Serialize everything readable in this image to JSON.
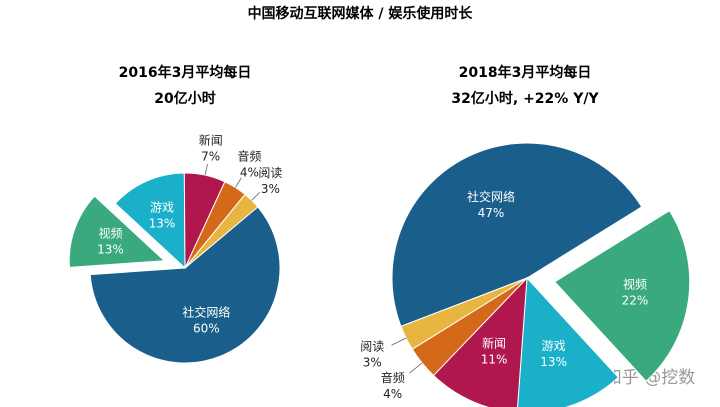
{
  "title": "中国移动互联网媒体 / 娱乐使用时长",
  "watermark": "知乎 @挖数",
  "chart_data": [
    {
      "type": "pie",
      "title": "2016年3月平均每日",
      "subtitle": "20亿小时",
      "categories": [
        "社交网络",
        "视频",
        "游戏",
        "新闻",
        "音频",
        "阅读"
      ],
      "values": [
        60,
        13,
        13,
        7,
        4,
        3
      ],
      "value_labels": [
        "60%",
        "13%",
        "13%",
        "7%",
        "4%",
        "3%"
      ],
      "colors": [
        "#1a5e8c",
        "#3aaa7e",
        "#1ab0c9",
        "#b0174e",
        "#d4691a",
        "#e8b640"
      ],
      "explode": [
        false,
        true,
        false,
        false,
        false,
        false
      ]
    },
    {
      "type": "pie",
      "title": "2018年3月平均每日",
      "subtitle": "32亿小时, +22% Y/Y",
      "categories": [
        "社交网络",
        "视频",
        "游戏",
        "新闻",
        "音频",
        "阅读"
      ],
      "values": [
        47,
        22,
        13,
        11,
        4,
        3
      ],
      "value_labels": [
        "47%",
        "22%",
        "13%",
        "11%",
        "4%",
        "3%"
      ],
      "colors": [
        "#1a5e8c",
        "#3aaa7e",
        "#1ab0c9",
        "#b0174e",
        "#d4691a",
        "#e8b640"
      ],
      "explode": [
        false,
        true,
        false,
        false,
        false,
        false
      ]
    }
  ]
}
